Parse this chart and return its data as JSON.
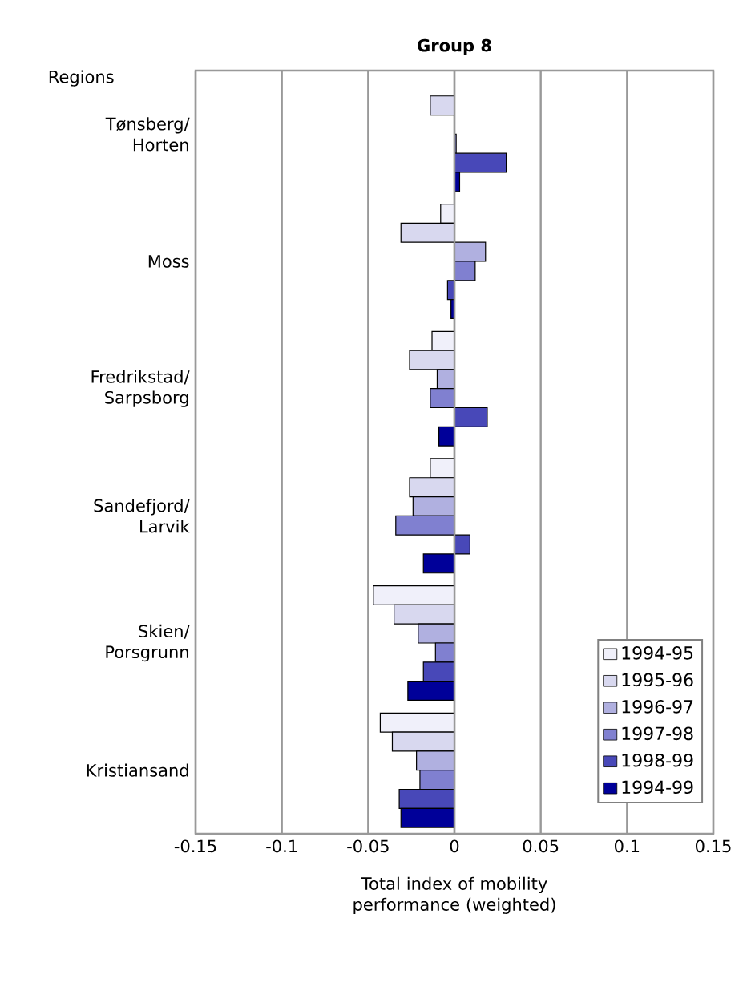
{
  "chart_data": {
    "type": "bar",
    "orientation": "horizontal",
    "title": "Group 8",
    "ylabel": "Regions",
    "xlabel": "Total index of mobility performance (weighted)",
    "categories": [
      "Tønsberg/ Horten",
      "Moss",
      "Fredrikstad/ Sarpsborg",
      "Sandefjord/ Larvik",
      "Skien/ Porsgrunn",
      "Kristiansand"
    ],
    "series": [
      {
        "name": "1994-95",
        "color": "#f0f0fa",
        "values": [
          null,
          -0.008,
          -0.013,
          -0.014,
          -0.047,
          -0.043
        ]
      },
      {
        "name": "1995-96",
        "color": "#d8d8ef",
        "values": [
          -0.014,
          -0.031,
          -0.026,
          -0.026,
          -0.035,
          -0.036
        ]
      },
      {
        "name": "1996-97",
        "color": "#b0b0e0",
        "values": [
          null,
          0.018,
          -0.01,
          -0.024,
          -0.021,
          -0.022
        ]
      },
      {
        "name": "1997-98",
        "color": "#8080d0",
        "values": [
          0.001,
          0.012,
          -0.014,
          -0.034,
          -0.011,
          -0.02
        ]
      },
      {
        "name": "1998-99",
        "color": "#4848b8",
        "values": [
          0.03,
          -0.004,
          0.019,
          0.009,
          -0.018,
          -0.032
        ]
      },
      {
        "name": "1994-99",
        "color": "#000099",
        "values": [
          0.003,
          -0.002,
          -0.009,
          -0.018,
          -0.027,
          -0.031
        ]
      }
    ],
    "xlim": [
      -0.15,
      0.15
    ],
    "xticks": [
      -0.15,
      -0.1,
      -0.05,
      0,
      0.05,
      0.1,
      0.15
    ],
    "grid": "x",
    "legend": "bottom right"
  }
}
